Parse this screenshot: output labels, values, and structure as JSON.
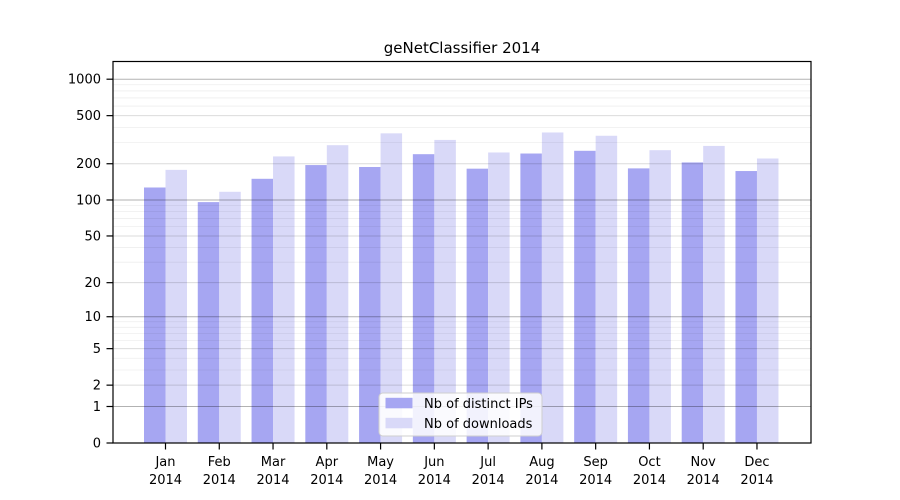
{
  "chart_data": {
    "type": "bar",
    "title": "geNetClassifier 2014",
    "categories": [
      "Jan",
      "Feb",
      "Mar",
      "Apr",
      "May",
      "Jun",
      "Jul",
      "Aug",
      "Sep",
      "Oct",
      "Nov",
      "Dec"
    ],
    "category_year": "2014",
    "series": [
      {
        "name": "Nb of distinct IPs",
        "color": "#a6a6f2",
        "values": [
          127,
          96,
          150,
          195,
          188,
          240,
          182,
          243,
          256,
          183,
          205,
          174
        ]
      },
      {
        "name": "Nb of downloads",
        "color": "#d9d9f8",
        "values": [
          178,
          117,
          230,
          285,
          357,
          315,
          248,
          363,
          341,
          259,
          281,
          221
        ]
      }
    ],
    "xlabel": "",
    "ylabel": "",
    "y_axis": {
      "scale": "log1p",
      "tick_labels": [
        0,
        1,
        2,
        5,
        10,
        20,
        50,
        100,
        200,
        500,
        1000
      ],
      "minor_tick_lines": [
        3,
        4,
        6,
        7,
        8,
        9,
        30,
        40,
        60,
        70,
        80,
        90,
        300,
        400,
        600,
        700,
        800,
        900
      ],
      "ylim": [
        0,
        1400
      ]
    },
    "grid": "on",
    "legend": {
      "position": "inside-bottom-center",
      "entries": [
        "Nb of distinct IPs",
        "Nb of downloads"
      ]
    }
  }
}
